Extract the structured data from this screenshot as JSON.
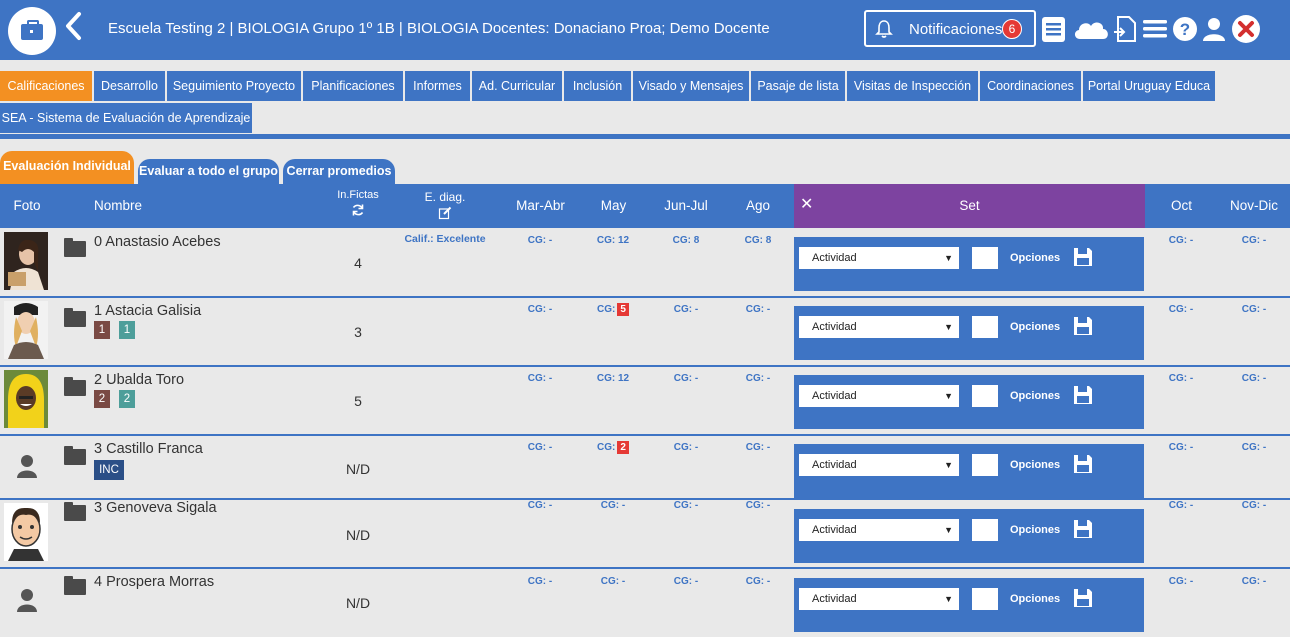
{
  "header": {
    "title": "Escuela Testing 2 | BIOLOGIA Grupo 1º 1B | BIOLOGIA Docentes: Donaciano Proa; Demo Docente",
    "notifications_label": "Notificaciones",
    "notifications_count": "6"
  },
  "tabs": [
    {
      "label": "Calificaciones"
    },
    {
      "label": "Desarrollo"
    },
    {
      "label": "Seguimiento Proyecto"
    },
    {
      "label": "Planificaciones"
    },
    {
      "label": "Informes"
    },
    {
      "label": "Ad. Curricular"
    },
    {
      "label": "Inclusión"
    },
    {
      "label": "Visado y Mensajes"
    },
    {
      "label": "Pasaje de lista"
    },
    {
      "label": "Visitas de Inspección"
    },
    {
      "label": "Coordinaciones"
    },
    {
      "label": "Portal Uruguay Educa"
    },
    {
      "label": "SEA - Sistema de Evaluación de Aprendizaje"
    }
  ],
  "subtabs": [
    {
      "label": "Evaluación Individual"
    },
    {
      "label": "Evaluar a todo el grupo"
    },
    {
      "label": "Cerrar promedios"
    }
  ],
  "columns": {
    "foto": "Foto",
    "nombre": "Nombre",
    "fictas": "In.Fictas",
    "ediag": "E. diag.",
    "mar_abr": "Mar-Abr",
    "may": "May",
    "jun_jul": "Jun-Jul",
    "ago": "Ago",
    "set": "Set",
    "oct": "Oct",
    "nov_dic": "Nov-Dic",
    "set_close": "✕"
  },
  "set_controls": {
    "select_value": "Actividad",
    "options_label": "Opciones"
  },
  "students": [
    {
      "name": "0 Anastasio Acebes",
      "fictas": "4",
      "calif": "Calif.: Excelente",
      "mar_abr": "CG: -",
      "may": "CG: 12",
      "jun_jul": "CG: 8",
      "ago": "CG: 8",
      "oct": "CG: -",
      "nov_dic": "CG: -"
    },
    {
      "name": "1 Astacia Galisia",
      "fictas": "3",
      "tags": [
        "1",
        "1"
      ],
      "mar_abr": "CG: -",
      "may_prefix": "CG:",
      "may_badge": "5",
      "jun_jul": "CG: -",
      "ago": "CG: -",
      "oct": "CG: -",
      "nov_dic": "CG: -"
    },
    {
      "name": "2 Ubalda Toro",
      "fictas": "5",
      "tags": [
        "2",
        "2"
      ],
      "mar_abr": "CG: -",
      "may": "CG: 12",
      "jun_jul": "CG: -",
      "ago": "CG: -",
      "oct": "CG: -",
      "nov_dic": "CG: -"
    },
    {
      "name": "3 Castillo Franca",
      "fictas": "N/D",
      "tags": [
        "INC"
      ],
      "mar_abr": "CG: -",
      "may_prefix": "CG:",
      "may_badge": "2",
      "jun_jul": "CG: -",
      "ago": "CG: -",
      "oct": "CG: -",
      "nov_dic": "CG: -"
    },
    {
      "name": "3 Genoveva Sigala",
      "fictas": "N/D",
      "mar_abr": "CG: -",
      "may": "CG: -",
      "jun_jul": "CG: -",
      "ago": "CG: -",
      "oct": "CG: -",
      "nov_dic": "CG: -"
    },
    {
      "name": "4 Prospera Morras",
      "fictas": "N/D",
      "mar_abr": "CG: -",
      "may": "CG: -",
      "jun_jul": "CG: -",
      "ago": "CG: -",
      "oct": "CG: -",
      "nov_dic": "CG: -"
    }
  ],
  "colors": {
    "primary": "#3e74c4",
    "active_tab": "#f39022",
    "set_header": "#7d43a0",
    "alert": "#e53935",
    "tag_brown": "#7a4a44",
    "tag_teal": "#4d9e9a",
    "tag_navy": "#2b4f87"
  }
}
